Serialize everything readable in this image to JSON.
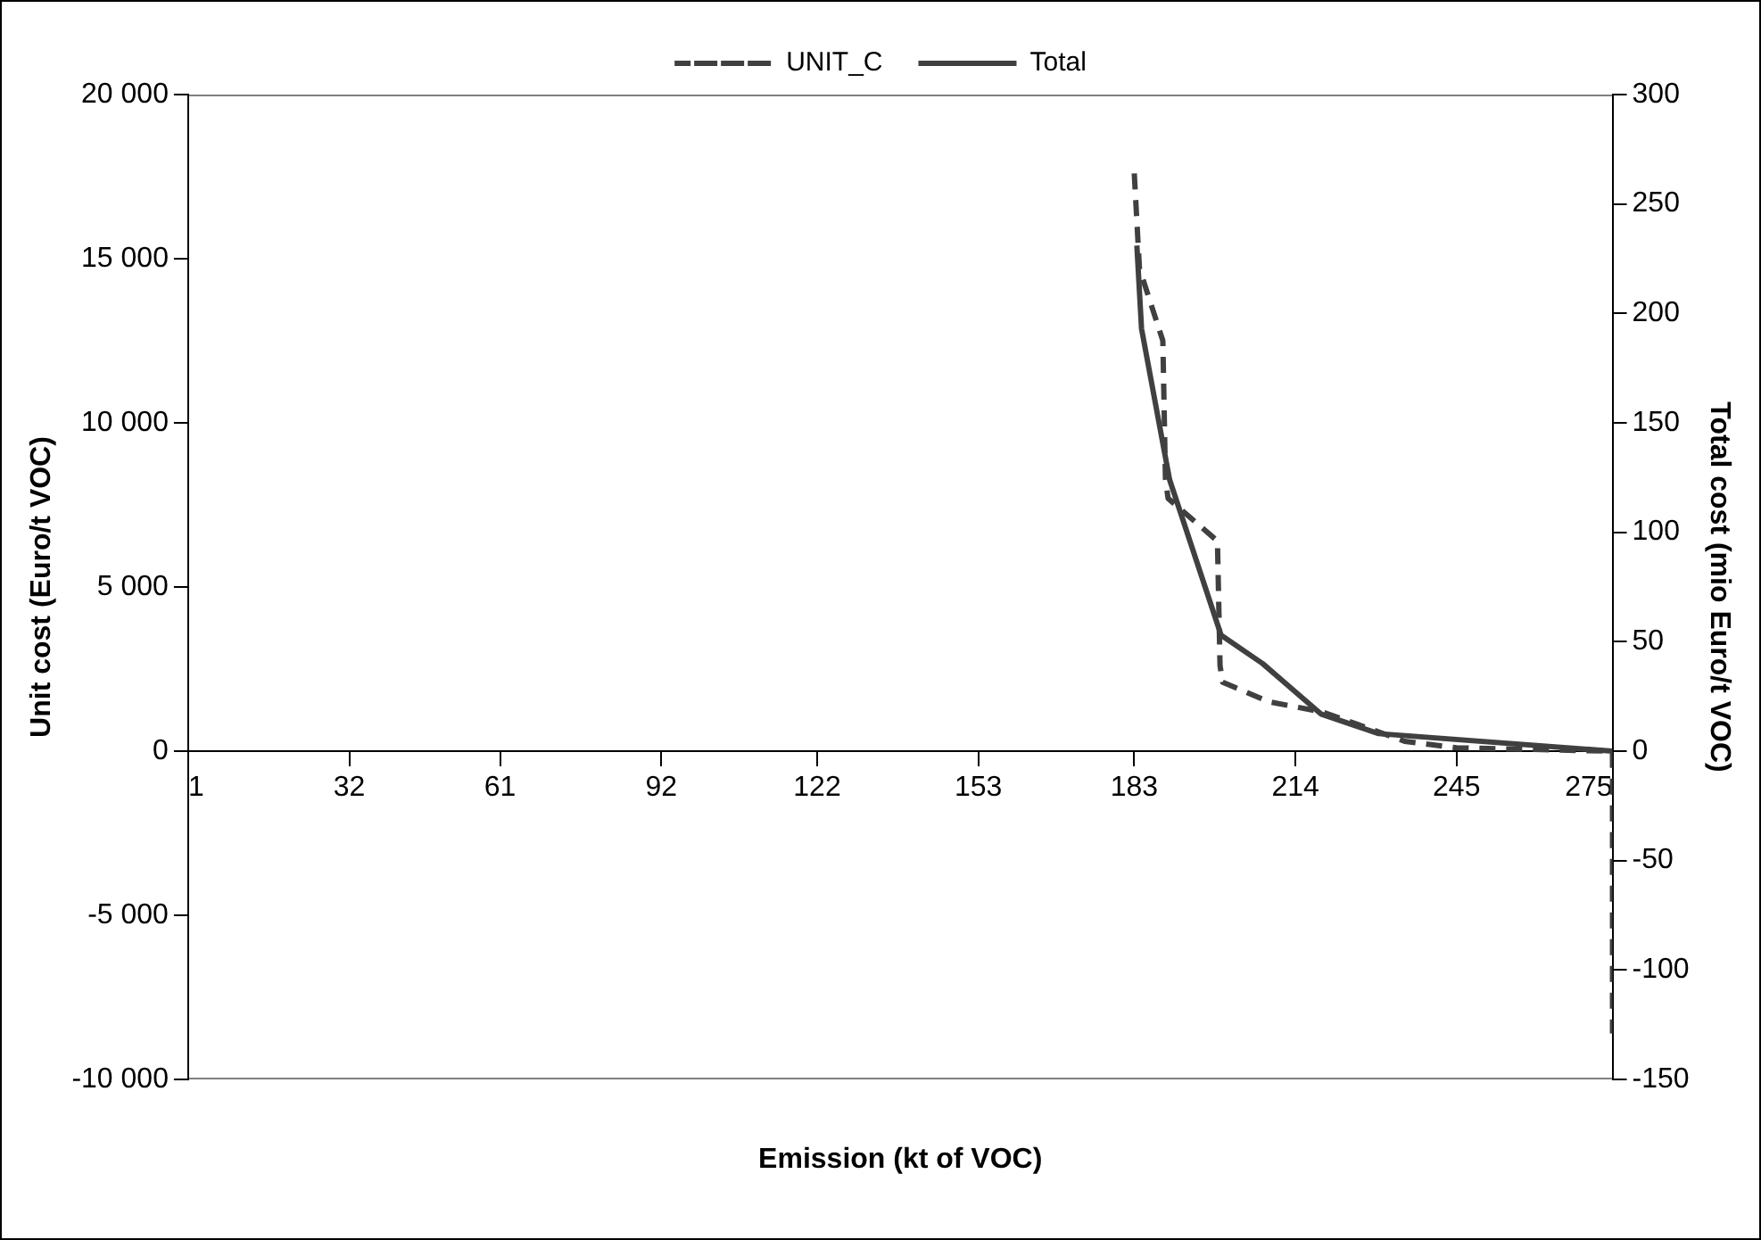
{
  "chart_data": {
    "type": "line",
    "xlabel": "Emission (kt of VOC)",
    "ylabel": "Unit cost (Euro/t VOC)",
    "y2label": "Total cost (mio Euro/t VOC)",
    "xlim": [
      1,
      275
    ],
    "xticks": [
      1,
      32,
      61,
      92,
      122,
      153,
      183,
      214,
      245,
      275
    ],
    "ylim": [
      -10000,
      20000
    ],
    "yticks": [
      {
        "value": -10000,
        "label": "-10 000"
      },
      {
        "value": -5000,
        "label": "-5 000"
      },
      0,
      {
        "value": 5000,
        "label": "5 000"
      },
      {
        "value": 10000,
        "label": "10 000"
      },
      {
        "value": 15000,
        "label": "15 000"
      },
      {
        "value": 20000,
        "label": "20 000"
      }
    ],
    "y2lim": [
      -150,
      300
    ],
    "y2ticks": [
      -150,
      -100,
      -50,
      0,
      50,
      100,
      150,
      200,
      250,
      300
    ],
    "grid": false,
    "legend": "top",
    "marker": "none",
    "series": [
      {
        "name": "UNIT_C",
        "color": "#404040",
        "line_style": "dashed",
        "x": [
          183,
          184,
          188.5,
          189,
          189.5,
          199,
          199.5,
          200,
          209,
          219,
          228,
          235,
          245,
          275,
          275
        ],
        "values": [
          17600,
          14700,
          12500,
          8300,
          7700,
          6400,
          2600,
          2100,
          1500,
          1200,
          700,
          300,
          100,
          0,
          -8600
        ]
      },
      {
        "name": "Total",
        "color": "#404040",
        "line_style": "solid",
        "axis": "y2",
        "x": [
          183.5,
          184.4,
          189.8,
          199.7,
          207.7,
          218.9,
          230,
          275
        ],
        "values": [
          231,
          193,
          124,
          53,
          40,
          17,
          8,
          0
        ]
      }
    ]
  }
}
